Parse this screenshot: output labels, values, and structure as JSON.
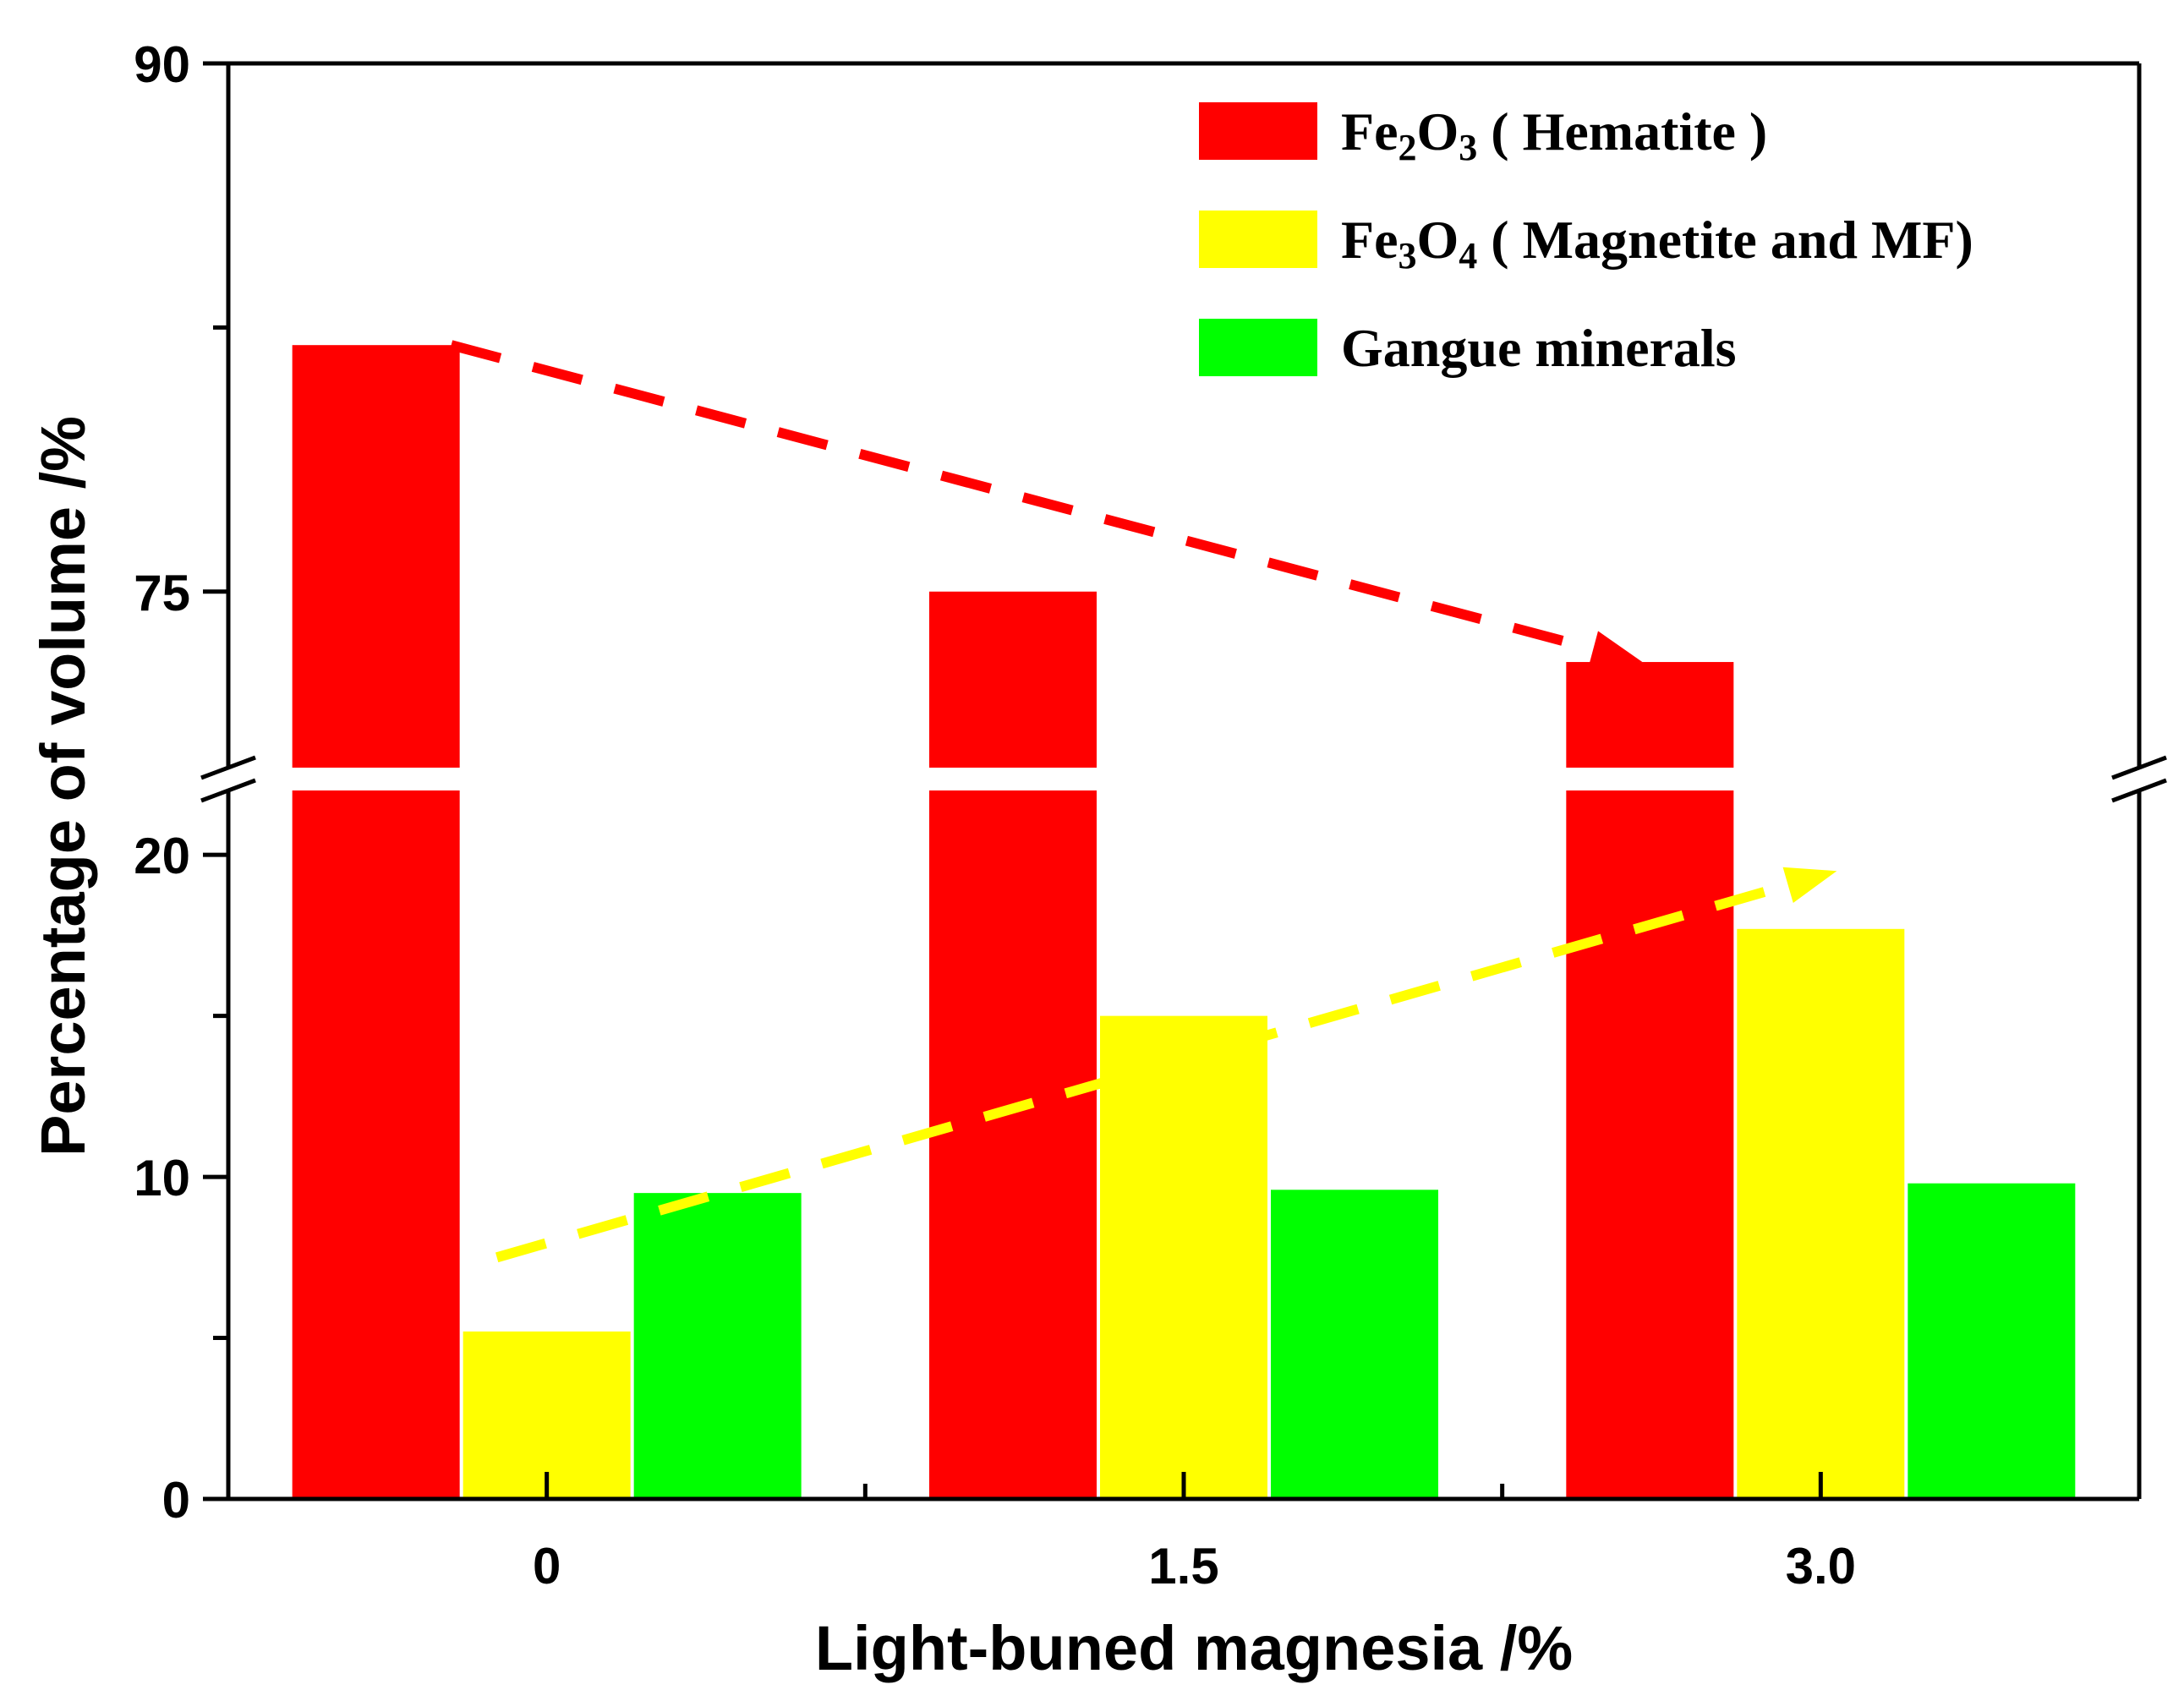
{
  "chart_data": {
    "type": "bar",
    "categories": [
      "0",
      "1.5",
      "3.0"
    ],
    "series": [
      {
        "name": "Fe2O3 ( Hematite )",
        "color": "#ff0000",
        "values": [
          82.0,
          75.0,
          73.0
        ]
      },
      {
        "name": "Fe3O4 ( Magnetite and  MF)",
        "color": "#ffff00",
        "values": [
          5.2,
          15.0,
          17.7
        ]
      },
      {
        "name": "Gangue   minerals",
        "color": "#00ff00",
        "values": [
          9.5,
          9.6,
          9.8
        ]
      }
    ],
    "xlabel": "Light-buned magnesia  /%",
    "ylabel": "Percentage of volume /%",
    "ylim_lower": [
      0,
      22
    ],
    "ylim_upper": [
      70,
      90
    ],
    "y_tick_labels_lower": [
      "0",
      "10",
      "20"
    ],
    "y_tick_labels_upper": [
      "75",
      "90"
    ],
    "axis_break": true,
    "legend_position": "top-right",
    "legend": [
      {
        "base1": "Fe",
        "sub1": "2",
        "base2": "O",
        "sub2": "3",
        "tail": " ( Hematite )",
        "color": "#ff0000"
      },
      {
        "base1": "Fe",
        "sub1": "3",
        "base2": "O",
        "sub2": "4",
        "tail": " ( Magnetite and  MF)",
        "color": "#ffff00"
      },
      {
        "text": "Gangue   minerals",
        "color": "#00ff00"
      }
    ],
    "trend_arrows": [
      {
        "series": "Fe2O3 ( Hematite )",
        "style": "dashed",
        "color": "#ff0000",
        "from": {
          "x": "0",
          "y": 82.0
        },
        "to": {
          "x": "3.0",
          "y": 73.0
        }
      },
      {
        "series": "Fe3O4 ( Magnetite and  MF)",
        "style": "dashed",
        "color": "#ffff00",
        "from": {
          "x": "0",
          "y": 7.5
        },
        "to": {
          "x": "3.0",
          "y": 19.5
        }
      }
    ]
  }
}
